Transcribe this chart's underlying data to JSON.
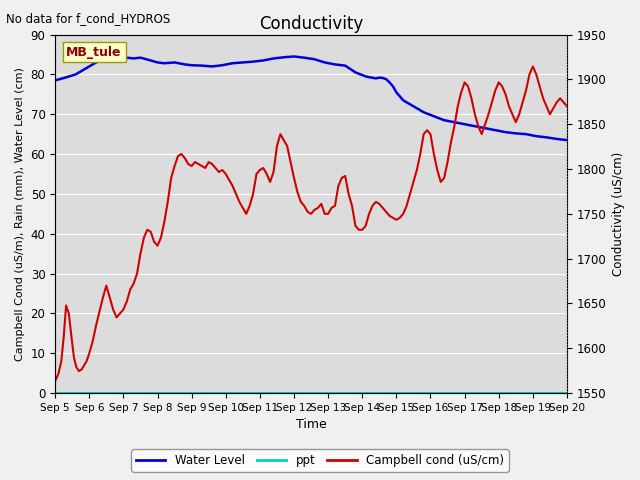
{
  "title": "Conductivity",
  "top_left_text": "No data for f_cond_HYDROS",
  "xlabel": "Time",
  "ylabel_left": "Campbell Cond (uS/m), Rain (mm), Water Level (cm)",
  "ylabel_right": "Conductivity (uS/cm)",
  "ylim_left": [
    0,
    90
  ],
  "ylim_right": [
    1550,
    1950
  ],
  "fig_facecolor": "#f0f0f0",
  "plot_bg_color": "#dcdcdc",
  "legend_box_text": "MB_tule",
  "legend_box_facecolor": "#ffffcc",
  "legend_box_edgecolor": "#999900",
  "x_tick_labels": [
    "Sep 5",
    "Sep 6",
    "Sep 7",
    "Sep 8",
    "Sep 9",
    "Sep 10",
    "Sep 11",
    "Sep 12",
    "Sep 13",
    "Sep 14",
    "Sep 15",
    "Sep 16",
    "Sep 17",
    "Sep 18",
    "Sep 19",
    "Sep 20"
  ],
  "water_level_color": "#0000dd",
  "ppt_color": "#00cccc",
  "campbell_cond_color": "#cc0000",
  "wl_x": [
    0.0,
    0.3,
    0.6,
    0.9,
    1.2,
    1.5,
    1.8,
    2.0,
    2.3,
    2.5,
    2.8,
    3.0,
    3.2,
    3.5,
    3.8,
    4.0,
    4.3,
    4.6,
    4.9,
    5.2,
    5.5,
    5.8,
    6.1,
    6.4,
    6.7,
    7.0,
    7.3,
    7.6,
    7.9,
    8.2,
    8.5,
    8.8,
    9.1,
    9.2,
    9.4,
    9.5,
    9.6,
    9.7,
    9.8,
    9.9,
    10.0,
    10.2,
    10.5,
    10.8,
    11.1,
    11.4,
    11.7,
    12.0,
    12.3,
    12.6,
    12.9,
    13.2,
    13.5,
    13.8,
    14.1,
    14.4,
    14.7,
    15.0
  ],
  "wl_y": [
    78.5,
    79.2,
    80.0,
    81.5,
    83.0,
    84.0,
    84.5,
    84.3,
    84.0,
    84.2,
    83.5,
    83.0,
    82.8,
    83.0,
    82.5,
    82.3,
    82.2,
    82.0,
    82.3,
    82.8,
    83.0,
    83.2,
    83.5,
    84.0,
    84.3,
    84.5,
    84.2,
    83.8,
    83.0,
    82.5,
    82.2,
    80.5,
    79.5,
    79.3,
    79.0,
    79.2,
    79.1,
    78.8,
    78.0,
    77.0,
    75.5,
    73.5,
    72.0,
    70.5,
    69.5,
    68.5,
    68.0,
    67.5,
    67.0,
    66.5,
    66.0,
    65.5,
    65.2,
    65.0,
    64.5,
    64.2,
    63.8,
    63.5
  ],
  "campbell_x": [
    0.0,
    0.1,
    0.18,
    0.25,
    0.32,
    0.4,
    0.48,
    0.55,
    0.62,
    0.7,
    0.78,
    0.85,
    0.92,
    1.0,
    1.1,
    1.2,
    1.3,
    1.4,
    1.5,
    1.6,
    1.7,
    1.8,
    1.9,
    2.0,
    2.1,
    2.2,
    2.3,
    2.4,
    2.5,
    2.6,
    2.7,
    2.8,
    2.9,
    3.0,
    3.1,
    3.2,
    3.3,
    3.4,
    3.5,
    3.6,
    3.7,
    3.8,
    3.9,
    4.0,
    4.1,
    4.2,
    4.3,
    4.4,
    4.5,
    4.6,
    4.7,
    4.8,
    4.9,
    5.0,
    5.1,
    5.2,
    5.3,
    5.4,
    5.5,
    5.6,
    5.7,
    5.8,
    5.9,
    6.0,
    6.1,
    6.2,
    6.3,
    6.4,
    6.5,
    6.6,
    6.7,
    6.8,
    6.9,
    7.0,
    7.1,
    7.2,
    7.3,
    7.4,
    7.5,
    7.6,
    7.7,
    7.8,
    7.9,
    8.0,
    8.1,
    8.2,
    8.3,
    8.4,
    8.5,
    8.6,
    8.7,
    8.8,
    8.9,
    9.0,
    9.1,
    9.2,
    9.3,
    9.4,
    9.5,
    9.6,
    9.7,
    9.8,
    9.9,
    10.0,
    10.1,
    10.2,
    10.3,
    10.4,
    10.5,
    10.6,
    10.7,
    10.8,
    10.9,
    11.0,
    11.1,
    11.2,
    11.3,
    11.4,
    11.5,
    11.6,
    11.7,
    11.8,
    11.9,
    12.0,
    12.1,
    12.2,
    12.3,
    12.4,
    12.5,
    12.6,
    12.7,
    12.8,
    12.9,
    13.0,
    13.1,
    13.2,
    13.3,
    13.4,
    13.5,
    13.6,
    13.7,
    13.8,
    13.9,
    14.0,
    14.1,
    14.2,
    14.3,
    14.4,
    14.5,
    14.6,
    14.7,
    14.8,
    14.9,
    15.0
  ],
  "campbell_y": [
    3.0,
    5.0,
    8.0,
    14.0,
    22.0,
    20.0,
    14.0,
    9.0,
    6.5,
    5.5,
    6.0,
    7.0,
    8.0,
    10.0,
    13.0,
    17.0,
    20.5,
    24.0,
    27.0,
    24.0,
    21.0,
    19.0,
    20.0,
    21.0,
    23.0,
    26.0,
    27.5,
    30.0,
    35.0,
    39.0,
    41.0,
    40.5,
    38.0,
    37.0,
    39.0,
    43.0,
    48.0,
    54.0,
    57.0,
    59.5,
    60.0,
    59.0,
    57.5,
    57.0,
    58.0,
    57.5,
    57.0,
    56.5,
    58.0,
    57.5,
    56.5,
    55.5,
    56.0,
    55.0,
    53.5,
    52.0,
    50.0,
    48.0,
    46.5,
    45.0,
    47.0,
    50.0,
    55.0,
    56.0,
    56.5,
    55.0,
    53.0,
    55.5,
    62.0,
    65.0,
    63.5,
    62.0,
    58.0,
    54.0,
    50.5,
    48.0,
    47.0,
    45.5,
    45.0,
    46.0,
    46.5,
    47.5,
    45.0,
    45.0,
    46.5,
    47.0,
    52.0,
    54.0,
    54.5,
    50.0,
    47.0,
    42.0,
    41.0,
    41.0,
    42.0,
    45.0,
    47.0,
    48.0,
    47.5,
    46.5,
    45.5,
    44.5,
    44.0,
    43.5,
    44.0,
    45.0,
    47.0,
    50.0,
    53.0,
    56.0,
    60.0,
    65.0,
    66.0,
    65.0,
    60.0,
    56.0,
    53.0,
    54.0,
    58.0,
    63.0,
    67.0,
    72.0,
    75.5,
    78.0,
    77.0,
    74.0,
    70.0,
    67.0,
    65.0,
    67.5,
    70.0,
    73.0,
    76.0,
    78.0,
    77.0,
    75.0,
    72.0,
    70.0,
    68.0,
    70.0,
    73.0,
    76.0,
    80.0,
    82.0,
    80.0,
    77.0,
    74.0,
    72.0,
    70.0,
    71.5,
    73.0,
    74.0,
    73.0,
    72.0
  ]
}
